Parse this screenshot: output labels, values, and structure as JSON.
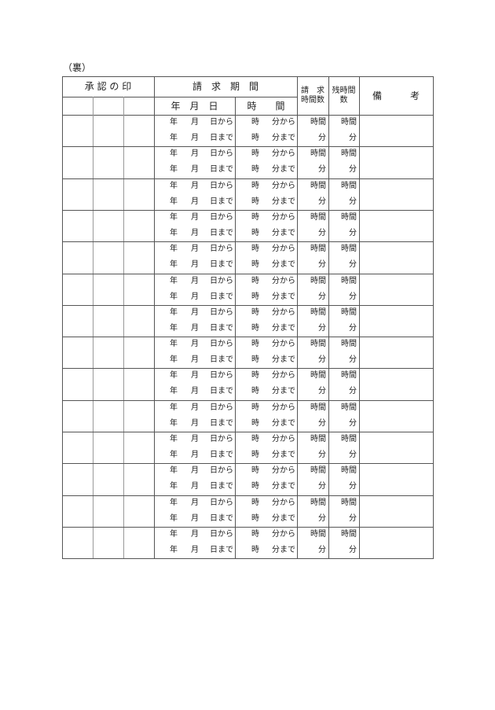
{
  "side_label": "（裏）",
  "header": {
    "approval_seal": "承 認 の 印",
    "request_period": "請　求　期　間",
    "date": "年　月　日",
    "time": "時　　間",
    "requested_hours_line1": "請　求",
    "requested_hours_line2": "時間数",
    "remaining_hours_line1": "残時間",
    "remaining_hours_line2": "数",
    "remarks": "備　　　考"
  },
  "rows": [
    {
      "from": {
        "year": "年",
        "month": "月",
        "day": "日から",
        "hour": "時",
        "minute": "分から",
        "req": "時間",
        "rem": "時間"
      },
      "to": {
        "year": "年",
        "month": "月",
        "day": "日まで",
        "hour": "時",
        "minute": "分まで",
        "req": "分",
        "rem": "分"
      }
    },
    {
      "from": {
        "year": "年",
        "month": "月",
        "day": "日から",
        "hour": "時",
        "minute": "分から",
        "req": "時間",
        "rem": "時間"
      },
      "to": {
        "year": "年",
        "month": "月",
        "day": "日まで",
        "hour": "時",
        "minute": "分まで",
        "req": "分",
        "rem": "分"
      }
    },
    {
      "from": {
        "year": "年",
        "month": "月",
        "day": "日から",
        "hour": "時",
        "minute": "分から",
        "req": "時間",
        "rem": "時間"
      },
      "to": {
        "year": "年",
        "month": "月",
        "day": "日まで",
        "hour": "時",
        "minute": "分まで",
        "req": "分",
        "rem": "分"
      }
    },
    {
      "from": {
        "year": "年",
        "month": "月",
        "day": "日から",
        "hour": "時",
        "minute": "分から",
        "req": "時間",
        "rem": "時間"
      },
      "to": {
        "year": "年",
        "month": "月",
        "day": "日まで",
        "hour": "時",
        "minute": "分まで",
        "req": "分",
        "rem": "分"
      }
    },
    {
      "from": {
        "year": "年",
        "month": "月",
        "day": "日から",
        "hour": "時",
        "minute": "分から",
        "req": "時間",
        "rem": "時間"
      },
      "to": {
        "year": "年",
        "month": "月",
        "day": "日まで",
        "hour": "時",
        "minute": "分まで",
        "req": "分",
        "rem": "分"
      }
    },
    {
      "from": {
        "year": "年",
        "month": "月",
        "day": "日から",
        "hour": "時",
        "minute": "分から",
        "req": "時間",
        "rem": "時間"
      },
      "to": {
        "year": "年",
        "month": "月",
        "day": "日まで",
        "hour": "時",
        "minute": "分まで",
        "req": "分",
        "rem": "分"
      }
    },
    {
      "from": {
        "year": "年",
        "month": "月",
        "day": "日から",
        "hour": "時",
        "minute": "分から",
        "req": "時間",
        "rem": "時間"
      },
      "to": {
        "year": "年",
        "month": "月",
        "day": "日まで",
        "hour": "時",
        "minute": "分まで",
        "req": "分",
        "rem": "分"
      }
    },
    {
      "from": {
        "year": "年",
        "month": "月",
        "day": "日から",
        "hour": "時",
        "minute": "分から",
        "req": "時間",
        "rem": "時間"
      },
      "to": {
        "year": "年",
        "month": "月",
        "day": "日まで",
        "hour": "時",
        "minute": "分まで",
        "req": "分",
        "rem": "分"
      }
    },
    {
      "from": {
        "year": "年",
        "month": "月",
        "day": "日から",
        "hour": "時",
        "minute": "分から",
        "req": "時間",
        "rem": "時間"
      },
      "to": {
        "year": "年",
        "month": "月",
        "day": "日まで",
        "hour": "時",
        "minute": "分まで",
        "req": "分",
        "rem": "分"
      }
    },
    {
      "from": {
        "year": "年",
        "month": "月",
        "day": "日から",
        "hour": "時",
        "minute": "分から",
        "req": "時間",
        "rem": "時間"
      },
      "to": {
        "year": "年",
        "month": "月",
        "day": "日まで",
        "hour": "時",
        "minute": "分まで",
        "req": "分",
        "rem": "分"
      }
    },
    {
      "from": {
        "year": "年",
        "month": "月",
        "day": "日から",
        "hour": "時",
        "minute": "分から",
        "req": "時間",
        "rem": "時間"
      },
      "to": {
        "year": "年",
        "month": "月",
        "day": "日まで",
        "hour": "時",
        "minute": "分まで",
        "req": "分",
        "rem": "分"
      }
    },
    {
      "from": {
        "year": "年",
        "month": "月",
        "day": "日から",
        "hour": "時",
        "minute": "分から",
        "req": "時間",
        "rem": "時間"
      },
      "to": {
        "year": "年",
        "month": "月",
        "day": "日まで",
        "hour": "時",
        "minute": "分まで",
        "req": "分",
        "rem": "分"
      }
    },
    {
      "from": {
        "year": "年",
        "month": "月",
        "day": "日から",
        "hour": "時",
        "minute": "分から",
        "req": "時間",
        "rem": "時間"
      },
      "to": {
        "year": "年",
        "month": "月",
        "day": "日まで",
        "hour": "時",
        "minute": "分まで",
        "req": "分",
        "rem": "分"
      }
    },
    {
      "from": {
        "year": "年",
        "month": "月",
        "day": "日から",
        "hour": "時",
        "minute": "分から",
        "req": "時間",
        "rem": "時間"
      },
      "to": {
        "year": "年",
        "month": "月",
        "day": "日まで",
        "hour": "時",
        "minute": "分まで",
        "req": "分",
        "rem": "分"
      }
    }
  ]
}
